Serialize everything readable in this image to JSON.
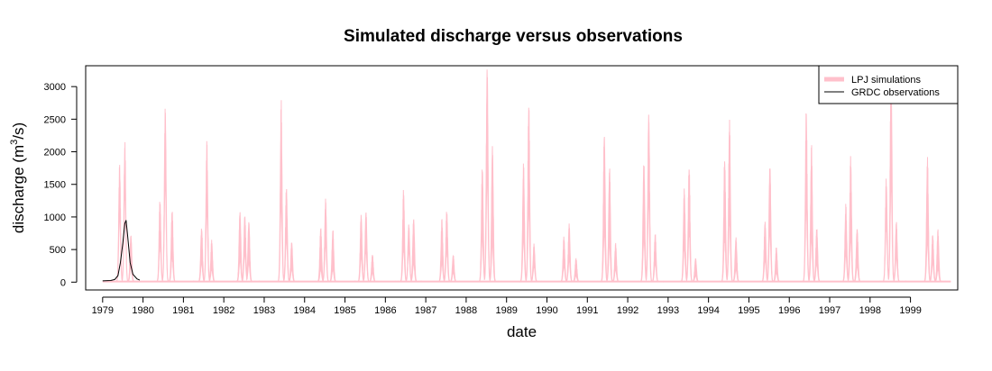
{
  "chart_data": {
    "type": "area",
    "title": "Simulated discharge versus observations",
    "xlabel": "date",
    "ylabel_main": "discharge (m",
    "ylabel_sup": "3",
    "ylabel_tail": "/s)",
    "x_ticks": [
      "1979",
      "1980",
      "1981",
      "1982",
      "1983",
      "1984",
      "1985",
      "1986",
      "1987",
      "1988",
      "1989",
      "1990",
      "1991",
      "1992",
      "1993",
      "1994",
      "1995",
      "1996",
      "1997",
      "1998",
      "1999"
    ],
    "xlim": [
      1978.58,
      2000.17
    ],
    "y_ticks": [
      0,
      500,
      1000,
      1500,
      2000,
      2500,
      3000
    ],
    "ylim": [
      -120,
      3320
    ],
    "grid": false,
    "legend_position": "top-right",
    "colors": {
      "simulation": "#ffc0cb",
      "observation": "#000000"
    },
    "series": [
      {
        "name": "LPJ simulations",
        "kind": "band",
        "annual_peaks": [
          [
            [
              1979.42,
              1700,
              1050
            ],
            [
              1979.55,
              2000,
              1500
            ],
            [
              1979.7,
              700,
              250
            ]
          ],
          [
            [
              1980.42,
              1200,
              600
            ],
            [
              1980.55,
              2550,
              1600
            ],
            [
              1980.72,
              1050,
              400
            ]
          ],
          [
            [
              1981.45,
              800,
              300
            ],
            [
              1981.58,
              2000,
              1150
            ],
            [
              1981.7,
              600,
              200
            ]
          ],
          [
            [
              1982.4,
              1050,
              350
            ],
            [
              1982.52,
              1000,
              450
            ],
            [
              1982.62,
              900,
              300
            ]
          ],
          [
            [
              1983.42,
              2550,
              1250
            ],
            [
              1983.55,
              1400,
              700
            ],
            [
              1983.68,
              600,
              200
            ]
          ],
          [
            [
              1984.4,
              800,
              200
            ],
            [
              1984.52,
              1200,
              600
            ],
            [
              1984.7,
              750,
              200
            ]
          ],
          [
            [
              1985.4,
              1000,
              400
            ],
            [
              1985.52,
              1050,
              500
            ],
            [
              1985.68,
              400,
              150
            ]
          ],
          [
            [
              1986.45,
              1350,
              550
            ],
            [
              1986.58,
              850,
              500
            ],
            [
              1986.7,
              950,
              300
            ]
          ],
          [
            [
              1987.4,
              900,
              300
            ],
            [
              1987.52,
              1050,
              500
            ],
            [
              1987.68,
              400,
              150
            ]
          ],
          [
            [
              1988.4,
              1700,
              700
            ],
            [
              1988.52,
              3200,
              1700
            ],
            [
              1988.65,
              2000,
              600
            ]
          ],
          [
            [
              1989.42,
              1700,
              700
            ],
            [
              1989.55,
              2600,
              1150
            ],
            [
              1989.68,
              550,
              250
            ]
          ],
          [
            [
              1990.42,
              650,
              250
            ],
            [
              1990.55,
              850,
              350
            ],
            [
              1990.72,
              350,
              100
            ]
          ],
          [
            [
              1991.42,
              2200,
              800
            ],
            [
              1991.55,
              1700,
              600
            ],
            [
              1991.7,
              550,
              200
            ]
          ],
          [
            [
              1992.4,
              1800,
              700
            ],
            [
              1992.52,
              2500,
              1300
            ],
            [
              1992.68,
              700,
              300
            ]
          ],
          [
            [
              1993.4,
              1350,
              550
            ],
            [
              1993.52,
              1700,
              800
            ],
            [
              1993.68,
              350,
              100
            ]
          ],
          [
            [
              1994.4,
              1800,
              700
            ],
            [
              1994.52,
              2350,
              1000
            ],
            [
              1994.68,
              650,
              200
            ]
          ],
          [
            [
              1995.4,
              900,
              350
            ],
            [
              1995.52,
              1750,
              800
            ],
            [
              1995.68,
              500,
              150
            ]
          ],
          [
            [
              1996.42,
              2500,
              1200
            ],
            [
              1996.55,
              1950,
              700
            ],
            [
              1996.68,
              800,
              300
            ]
          ],
          [
            [
              1997.4,
              1100,
              450
            ],
            [
              1997.52,
              1800,
              700
            ],
            [
              1997.68,
              800,
              250
            ]
          ],
          [
            [
              1998.4,
              1500,
              900
            ],
            [
              1998.52,
              3200,
              1600
            ],
            [
              1998.65,
              900,
              400
            ]
          ],
          [
            [
              1999.42,
              1800,
              650
            ],
            [
              1999.55,
              700,
              300
            ],
            [
              1999.68,
              750,
              200
            ]
          ]
        ]
      },
      {
        "name": "GRDC observations",
        "kind": "line",
        "x": [
          1979.0,
          1979.2,
          1979.3,
          1979.38,
          1979.44,
          1979.5,
          1979.55,
          1979.58,
          1979.62,
          1979.68,
          1979.75,
          1979.85,
          1979.92
        ],
        "y": [
          20,
          25,
          40,
          100,
          300,
          600,
          900,
          950,
          700,
          300,
          120,
          50,
          30
        ]
      }
    ]
  }
}
